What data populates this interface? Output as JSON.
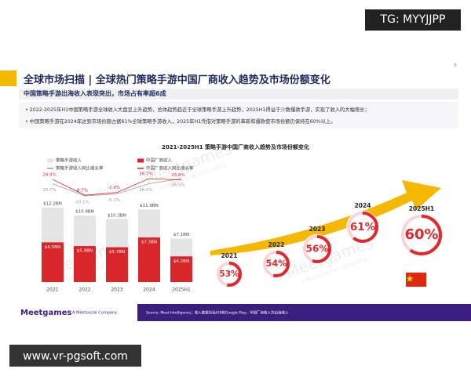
{
  "badge": "TG: MYYJJPP",
  "site": "www.vr-pgsoft.com",
  "header": {
    "title": "全球市场扫描 | 全球热门策略手游中国厂商收入趋势及市场份额变化",
    "page": "8",
    "subtitle": "中国策略手游出海收入表现突出，市场占有率超6成"
  },
  "bullets": [
    "2022-2025年H1中国策略手游全球收入大盘呈上升趋势，总体趋势趋近于全球策略手游上升趋势，2025H1得益于少数爆款手游，实现了收入的大幅增长；",
    "中国策略手游在2024年达到市场份额占据61%全球策略手游收入，2025年H1凭借对策略手游的革新和爆款使市场份额仍保持在60%以上。"
  ],
  "chart_data": [
    {
      "type": "bar",
      "title": "2021-2025H1 策略手游中国厂商收入趋势及市场份额变化",
      "categories": [
        "2021",
        "2022",
        "2023",
        "2024",
        "2025H1"
      ],
      "series": [
        {
          "name": "策略手游收入",
          "color": "#e4e4e4",
          "values": [
            12.2,
            10.9,
            10.3,
            11.9,
            7.1
          ],
          "value_labels": [
            "$12.2BN",
            "$10.9BN",
            "$10.3BN",
            "$11.9BN",
            "$7.1BN"
          ]
        },
        {
          "name": "中国厂商收入",
          "color": "#d9262b",
          "values": [
            6.5,
            5.9,
            5.7,
            7.3,
            4.2
          ],
          "value_labels": [
            "$6.5BN",
            "$5.9BN",
            "$5.7BN",
            "$7.3BN",
            "$4.2BN"
          ]
        },
        {
          "name": "策略手游收入同比增长率",
          "color": "#9a9a9a",
          "type": "line",
          "values": [
            15.7,
            -10.1,
            -6.1,
            16,
            26.5
          ],
          "value_labels": [
            "15.7%",
            "-10.1%",
            "-6.1%",
            "16.0%",
            "26.5%"
          ]
        },
        {
          "name": "中国厂商收入同比增长率",
          "color": "#d9262b",
          "type": "line",
          "values": [
            24.9,
            -8.7,
            -2.9,
            26.7,
            23.8
          ],
          "value_labels": [
            "24.9%",
            "-8.7%",
            "-2.9%",
            "26.7%",
            "23.8%"
          ]
        }
      ]
    },
    {
      "type": "donut",
      "categories": [
        "2021",
        "2022",
        "2023",
        "2024",
        "2025H1"
      ],
      "values": [
        53,
        54,
        56,
        61,
        60
      ],
      "value_labels": [
        "53%",
        "54%",
        "56%",
        "61%",
        "60%"
      ],
      "color": "#e0282d"
    }
  ],
  "watermark": {
    "brand": "Meetgames",
    "tagline": "a Meetsocial company"
  },
  "footer": {
    "brand": "Meetgames",
    "tagline": "A Meetsocial Company",
    "source": "Source: Meet Intelligence；收入数据包括iOS和Google Play，中国厂商收入为出海收入"
  }
}
